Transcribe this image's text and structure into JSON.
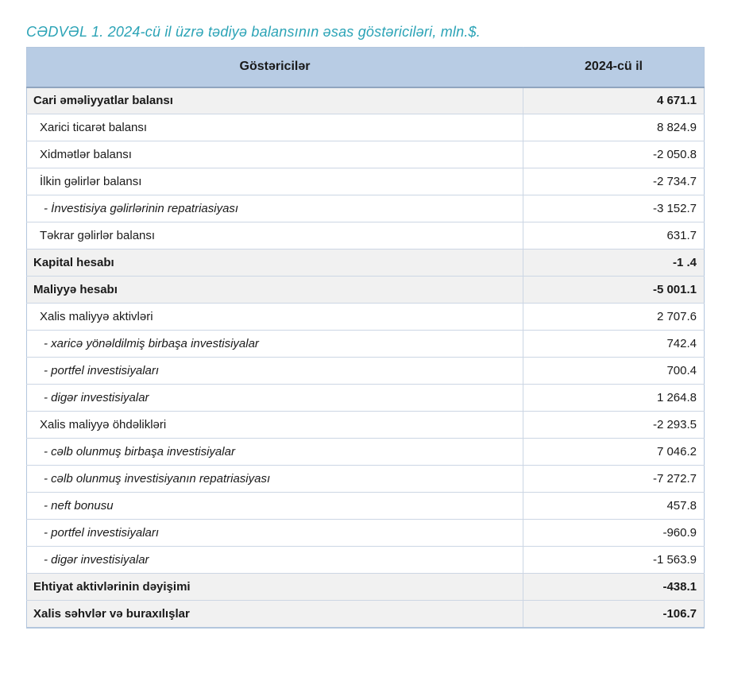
{
  "page_title": "CƏDVƏL 1. 2024-cü il üzrə tədiyə balansının əsas göstəriciləri, mln.$.",
  "colors": {
    "title_text": "#2ba3b6",
    "header_bg": "#b8cce4",
    "section_row_bg": "#f1f1f1",
    "row_border": "#ccd6e4",
    "header_border": "#90a5bf",
    "outer_border": "#b3c6dd"
  },
  "table": {
    "columns": {
      "indicator": "Göstəricilər",
      "year": "2024-cü il"
    },
    "rows": [
      {
        "label": "Cari əməliyyatlar balansı",
        "value": "4 671.1",
        "style": "section"
      },
      {
        "label": "Xarici ticarət balansı",
        "value": "8 824.9",
        "style": "sub"
      },
      {
        "label": "Xidmətlər balansı",
        "value": "-2 050.8",
        "style": "sub"
      },
      {
        "label": "İlkin gəlirlər balansı",
        "value": "-2 734.7",
        "style": "sub"
      },
      {
        "label": "- İnvestisiya gəlirlərinin repatriasiyası",
        "value": "-3 152.7",
        "style": "detail"
      },
      {
        "label": "Təkrar gəlirlər balansı",
        "value": "631.7",
        "style": "sub"
      },
      {
        "label": "Kapital hesabı",
        "value": "-1 .4",
        "style": "section"
      },
      {
        "label": "Maliyyə hesabı",
        "value": "-5 001.1",
        "style": "section"
      },
      {
        "label": "Xalis maliyyə aktivləri",
        "value": "2 707.6",
        "style": "sub"
      },
      {
        "label": "- xaricə yönəldilmiş birbaşa investisiyalar",
        "value": "742.4",
        "style": "detail"
      },
      {
        "label": "- portfel investisiyaları",
        "value": "700.4",
        "style": "detail"
      },
      {
        "label": "- digər investisiyalar",
        "value": "1 264.8",
        "style": "detail"
      },
      {
        "label": "Xalis maliyyə öhdəlikləri",
        "value": "-2 293.5",
        "style": "sub"
      },
      {
        "label": "- cəlb olunmuş birbaşa investisiyalar",
        "value": "7 046.2",
        "style": "detail"
      },
      {
        "label": "- cəlb olunmuş investisiyanın repatriasiyası",
        "value": "-7 272.7",
        "style": "detail"
      },
      {
        "label": "- neft bonusu",
        "value": "457.8",
        "style": "detail"
      },
      {
        "label": "- portfel investisiyaları",
        "value": "-960.9",
        "style": "detail"
      },
      {
        "label": "- digər investisiyalar",
        "value": "-1 563.9",
        "style": "detail"
      },
      {
        "label": "Ehtiyat aktivlərinin dəyişimi",
        "value": "-438.1",
        "style": "section"
      },
      {
        "label": "Xalis səhvlər və buraxılışlar",
        "value": "-106.7",
        "style": "section"
      }
    ]
  }
}
